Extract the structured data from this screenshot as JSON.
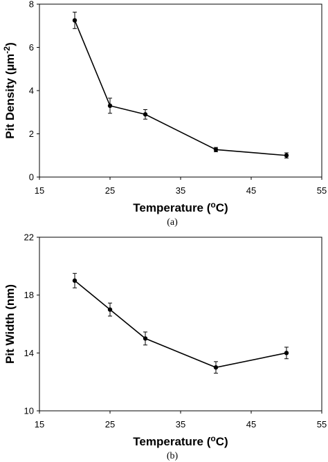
{
  "chart_data": [
    {
      "type": "line",
      "panel_label": "(a)",
      "xlabel": {
        "main": "Temperature (",
        "sup": "o",
        "tail": "C)"
      },
      "ylabel": {
        "main": "Pit Density (µm",
        "sup": "-2",
        "tail": ")"
      },
      "xlim": [
        15,
        55
      ],
      "ylim": [
        0,
        8
      ],
      "xticks": [
        15,
        25,
        35,
        45,
        55
      ],
      "yticks": [
        0,
        2,
        4,
        6,
        8
      ],
      "grid": false,
      "series": [
        {
          "x": [
            20,
            25,
            30,
            40,
            50
          ],
          "y": [
            7.25,
            3.3,
            2.9,
            1.27,
            1.0
          ],
          "err": [
            0.38,
            0.35,
            0.22,
            0.1,
            0.12
          ],
          "color": "#000000"
        }
      ]
    },
    {
      "type": "line",
      "panel_label": "(b)",
      "xlabel": {
        "main": "Temperature (",
        "sup": "o",
        "tail": "C)"
      },
      "ylabel": {
        "main": "Pit Width (nm)",
        "sup": "",
        "tail": ""
      },
      "xlim": [
        15,
        55
      ],
      "ylim": [
        10,
        22
      ],
      "xticks": [
        15,
        25,
        35,
        45,
        55
      ],
      "yticks": [
        10,
        14,
        18,
        22
      ],
      "grid": false,
      "series": [
        {
          "x": [
            20,
            25,
            30,
            40,
            50
          ],
          "y": [
            19.0,
            17.0,
            15.0,
            13.0,
            14.0
          ],
          "err": [
            0.5,
            0.45,
            0.45,
            0.4,
            0.4
          ],
          "color": "#000000"
        }
      ]
    }
  ]
}
